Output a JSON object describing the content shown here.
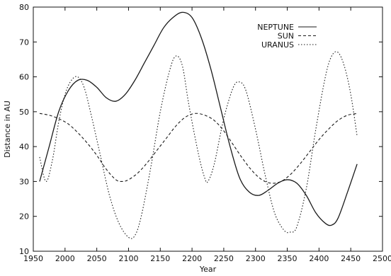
{
  "chart_data": {
    "type": "line",
    "xlabel": "Year",
    "ylabel": "Distance in AU",
    "xlim": [
      1950,
      2500
    ],
    "ylim": [
      10,
      80
    ],
    "xticks": [
      1950,
      2000,
      2050,
      2100,
      2150,
      2200,
      2250,
      2300,
      2350,
      2400,
      2450,
      2500
    ],
    "yticks": [
      10,
      20,
      30,
      40,
      50,
      60,
      70,
      80
    ],
    "grid": false,
    "legend_position": "top-right",
    "series": [
      {
        "name": "NEPTUNE",
        "style": "solid",
        "color": "#1a1a1a",
        "points": [
          [
            1960,
            30
          ],
          [
            1975,
            40
          ],
          [
            1990,
            50
          ],
          [
            2005,
            56
          ],
          [
            2020,
            59
          ],
          [
            2035,
            59
          ],
          [
            2050,
            57
          ],
          [
            2065,
            54
          ],
          [
            2080,
            53
          ],
          [
            2095,
            55
          ],
          [
            2110,
            59
          ],
          [
            2125,
            64
          ],
          [
            2140,
            69
          ],
          [
            2155,
            74
          ],
          [
            2170,
            77
          ],
          [
            2185,
            78.5
          ],
          [
            2200,
            77
          ],
          [
            2215,
            71
          ],
          [
            2230,
            62
          ],
          [
            2245,
            51
          ],
          [
            2260,
            40
          ],
          [
            2275,
            31
          ],
          [
            2290,
            27
          ],
          [
            2305,
            26
          ],
          [
            2320,
            27.5
          ],
          [
            2335,
            29.5
          ],
          [
            2350,
            30.5
          ],
          [
            2365,
            29.5
          ],
          [
            2380,
            26
          ],
          [
            2395,
            21
          ],
          [
            2410,
            18
          ],
          [
            2420,
            17.5
          ],
          [
            2430,
            19.5
          ],
          [
            2445,
            27
          ],
          [
            2460,
            35
          ]
        ]
      },
      {
        "name": "SUN",
        "style": "dashed",
        "color": "#1a1a1a",
        "points": [
          [
            1960,
            49.5
          ],
          [
            1975,
            49
          ],
          [
            1990,
            48
          ],
          [
            2005,
            46.5
          ],
          [
            2020,
            44
          ],
          [
            2035,
            41
          ],
          [
            2050,
            37.5
          ],
          [
            2065,
            33.5
          ],
          [
            2080,
            30.5
          ],
          [
            2090,
            30
          ],
          [
            2100,
            30.5
          ],
          [
            2115,
            32.5
          ],
          [
            2130,
            35.5
          ],
          [
            2145,
            39
          ],
          [
            2160,
            42.5
          ],
          [
            2175,
            46
          ],
          [
            2190,
            48.5
          ],
          [
            2205,
            49.5
          ],
          [
            2220,
            49
          ],
          [
            2235,
            47.5
          ],
          [
            2250,
            44.5
          ],
          [
            2265,
            40.5
          ],
          [
            2280,
            36.5
          ],
          [
            2295,
            33
          ],
          [
            2310,
            30.5
          ],
          [
            2325,
            29.5
          ],
          [
            2340,
            30
          ],
          [
            2355,
            32
          ],
          [
            2370,
            35
          ],
          [
            2385,
            38.5
          ],
          [
            2400,
            42
          ],
          [
            2415,
            45
          ],
          [
            2430,
            47.5
          ],
          [
            2445,
            49
          ],
          [
            2460,
            49.5
          ]
        ]
      },
      {
        "name": "URANUS",
        "style": "dotted",
        "color": "#1a1a1a",
        "points": [
          [
            1960,
            37
          ],
          [
            1970,
            30
          ],
          [
            1980,
            36
          ],
          [
            1990,
            47
          ],
          [
            2000,
            55
          ],
          [
            2010,
            59
          ],
          [
            2020,
            60
          ],
          [
            2030,
            57
          ],
          [
            2040,
            50
          ],
          [
            2055,
            38
          ],
          [
            2070,
            26
          ],
          [
            2085,
            18
          ],
          [
            2100,
            14
          ],
          [
            2110,
            14.5
          ],
          [
            2120,
            20
          ],
          [
            2135,
            34
          ],
          [
            2150,
            50
          ],
          [
            2165,
            62
          ],
          [
            2175,
            66
          ],
          [
            2185,
            63
          ],
          [
            2195,
            52
          ],
          [
            2210,
            38
          ],
          [
            2220,
            31
          ],
          [
            2225,
            30
          ],
          [
            2235,
            35
          ],
          [
            2250,
            48
          ],
          [
            2265,
            57
          ],
          [
            2275,
            58.5
          ],
          [
            2285,
            56
          ],
          [
            2300,
            45
          ],
          [
            2315,
            32
          ],
          [
            2330,
            21
          ],
          [
            2345,
            16
          ],
          [
            2355,
            15.5
          ],
          [
            2365,
            17
          ],
          [
            2380,
            28
          ],
          [
            2395,
            45
          ],
          [
            2410,
            60
          ],
          [
            2420,
            66
          ],
          [
            2430,
            67
          ],
          [
            2440,
            63
          ],
          [
            2450,
            55
          ],
          [
            2460,
            43
          ]
        ]
      }
    ]
  }
}
